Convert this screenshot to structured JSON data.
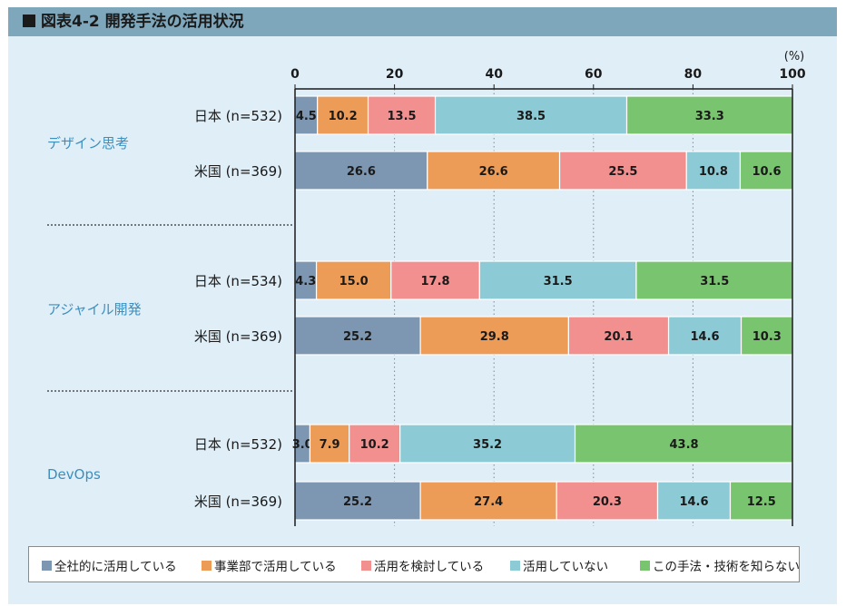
{
  "title": "図表4-2 開発手法の活用状況",
  "chart_data": {
    "type": "bar",
    "orientation": "horizontal",
    "stacked": true,
    "unit_label": "(%)",
    "xlim": [
      0,
      100
    ],
    "x_ticks": [
      "0",
      "20",
      "40",
      "60",
      "80",
      "100"
    ],
    "grid": "dotted vertical",
    "legend_position": "bottom",
    "series_names": [
      "全社的に活用している",
      "事業部で活用している",
      "活用を検討している",
      "活用していない",
      "この手法・技術を知らない"
    ],
    "colors": [
      "#7d97b2",
      "#ed9c58",
      "#f28f8f",
      "#8ccbd6",
      "#79c46e"
    ],
    "groups": [
      {
        "label": "デザイン思考",
        "rows": [
          {
            "label": "日本 (n=532)",
            "values": [
              4.5,
              10.2,
              13.5,
              38.5,
              33.3
            ]
          },
          {
            "label": "米国 (n=369)",
            "values": [
              26.6,
              26.6,
              25.5,
              10.8,
              10.6
            ]
          }
        ]
      },
      {
        "label": "アジャイル開発",
        "rows": [
          {
            "label": "日本 (n=534)",
            "values": [
              4.3,
              15.0,
              17.8,
              31.5,
              31.5
            ]
          },
          {
            "label": "米国 (n=369)",
            "values": [
              25.2,
              29.8,
              20.1,
              14.6,
              10.3
            ]
          }
        ]
      },
      {
        "label": "DevOps",
        "rows": [
          {
            "label": "日本 (n=532)",
            "values": [
              3.0,
              7.9,
              10.2,
              35.2,
              43.8
            ]
          },
          {
            "label": "米国 (n=369)",
            "values": [
              25.2,
              27.4,
              20.3,
              14.6,
              12.5
            ]
          }
        ]
      }
    ]
  }
}
